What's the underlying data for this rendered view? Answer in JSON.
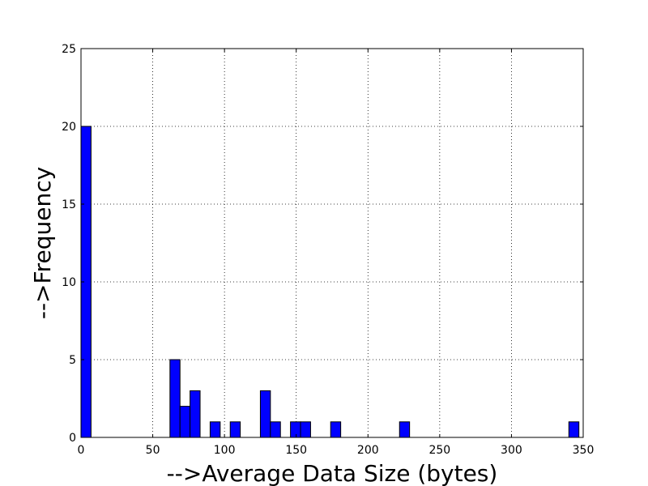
{
  "chart_data": {
    "type": "bar",
    "title": "",
    "xlabel": "-->Average Data Size (bytes)",
    "ylabel": "-->Frequency",
    "xlim": [
      0,
      350
    ],
    "ylim": [
      0,
      25
    ],
    "xticks": [
      0,
      50,
      100,
      150,
      200,
      250,
      300,
      350
    ],
    "yticks": [
      0,
      5,
      10,
      15,
      20,
      25
    ],
    "grid": true,
    "bar_color": "#0000ff",
    "bin_width": 7,
    "bins": [
      {
        "x0": 0,
        "x1": 7,
        "count": 20
      },
      {
        "x0": 62,
        "x1": 69,
        "count": 5
      },
      {
        "x0": 69,
        "x1": 76,
        "count": 2
      },
      {
        "x0": 76,
        "x1": 83,
        "count": 3
      },
      {
        "x0": 90,
        "x1": 97,
        "count": 1
      },
      {
        "x0": 104,
        "x1": 111,
        "count": 1
      },
      {
        "x0": 125,
        "x1": 132,
        "count": 3
      },
      {
        "x0": 132,
        "x1": 139,
        "count": 1
      },
      {
        "x0": 146,
        "x1": 153,
        "count": 1
      },
      {
        "x0": 153,
        "x1": 160,
        "count": 1
      },
      {
        "x0": 174,
        "x1": 181,
        "count": 1
      },
      {
        "x0": 222,
        "x1": 229,
        "count": 1
      },
      {
        "x0": 340,
        "x1": 347,
        "count": 1
      }
    ]
  }
}
